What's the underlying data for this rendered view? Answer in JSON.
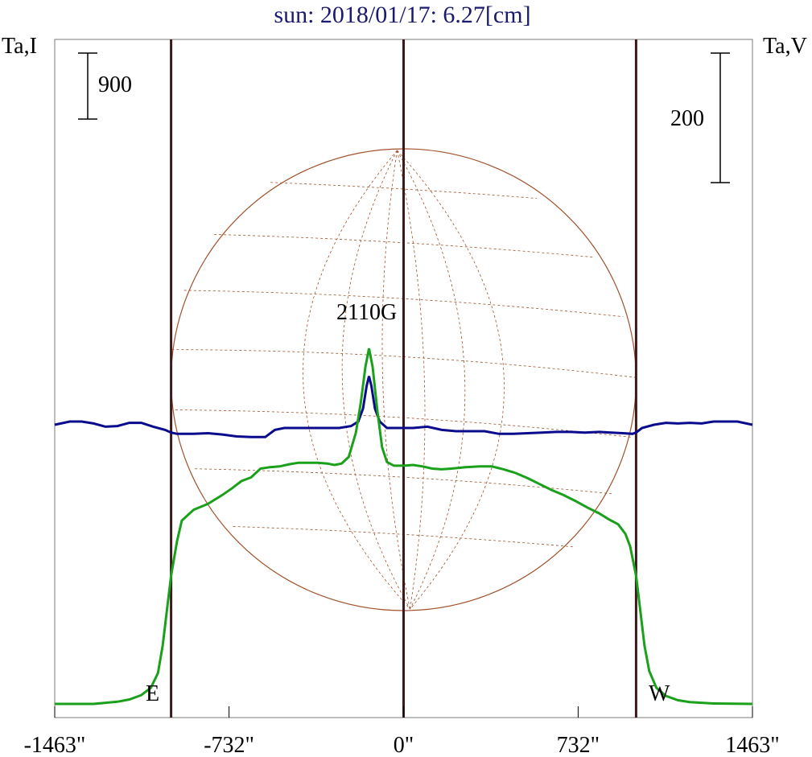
{
  "chart_data": {
    "type": "line",
    "title": "sun: 2018/01/17: 6.27[cm]",
    "left_axis_label": "Ta,I",
    "right_axis_label": "Ta,V",
    "x_unit": "arcsec",
    "xlim": [
      -1463,
      1463
    ],
    "x_tick_labels": [
      {
        "value": -1463,
        "label": "-1463\""
      },
      {
        "value": -732,
        "label": "-732\""
      },
      {
        "value": 0,
        "label": "0\""
      },
      {
        "value": 732,
        "label": "732\""
      },
      {
        "value": 1463,
        "label": "1463\""
      }
    ],
    "limb_markers": {
      "east": -975,
      "west": 975,
      "center": 0
    },
    "limb_labels": {
      "east": "E",
      "west": "W"
    },
    "scale_bars": {
      "intensity": {
        "label": "900",
        "value": 900
      },
      "polarization": {
        "label": "200",
        "value": 200
      }
    },
    "annotation": {
      "label": "2110G",
      "x": -12
    },
    "colors": {
      "intensity": "#1aa01a",
      "polarization": "#0a0a8c",
      "limb_lines": "#3a1a1a",
      "disk": "#a0522d",
      "title": "#1a1a6e"
    },
    "series": [
      {
        "key": "intensity",
        "points": [
          [
            -1463,
            0
          ],
          [
            -1300,
            0
          ],
          [
            -1200,
            30
          ],
          [
            -1150,
            60
          ],
          [
            -1100,
            120
          ],
          [
            -1060,
            220
          ],
          [
            -1030,
            420
          ],
          [
            -1010,
            800
          ],
          [
            -990,
            1350
          ],
          [
            -975,
            1750
          ],
          [
            -950,
            2220
          ],
          [
            -930,
            2500
          ],
          [
            -880,
            2650
          ],
          [
            -820,
            2730
          ],
          [
            -760,
            2850
          ],
          [
            -720,
            2940
          ],
          [
            -680,
            3040
          ],
          [
            -640,
            3090
          ],
          [
            -600,
            3210
          ],
          [
            -560,
            3230
          ],
          [
            -520,
            3240
          ],
          [
            -480,
            3270
          ],
          [
            -440,
            3290
          ],
          [
            -400,
            3290
          ],
          [
            -360,
            3290
          ],
          [
            -320,
            3280
          ],
          [
            -290,
            3260
          ],
          [
            -260,
            3280
          ],
          [
            -230,
            3370
          ],
          [
            -200,
            3700
          ],
          [
            -180,
            4100
          ],
          [
            -160,
            4600
          ],
          [
            -145,
            4850
          ],
          [
            -130,
            4600
          ],
          [
            -110,
            4000
          ],
          [
            -90,
            3500
          ],
          [
            -70,
            3300
          ],
          [
            -40,
            3250
          ],
          [
            0,
            3250
          ],
          [
            40,
            3260
          ],
          [
            80,
            3240
          ],
          [
            120,
            3210
          ],
          [
            160,
            3200
          ],
          [
            200,
            3210
          ],
          [
            260,
            3230
          ],
          [
            320,
            3240
          ],
          [
            370,
            3240
          ],
          [
            420,
            3200
          ],
          [
            470,
            3150
          ],
          [
            520,
            3080
          ],
          [
            570,
            3000
          ],
          [
            620,
            2920
          ],
          [
            670,
            2850
          ],
          [
            720,
            2770
          ],
          [
            770,
            2680
          ],
          [
            820,
            2600
          ],
          [
            860,
            2520
          ],
          [
            900,
            2450
          ],
          [
            930,
            2320
          ],
          [
            950,
            2150
          ],
          [
            975,
            1750
          ],
          [
            990,
            1350
          ],
          [
            1010,
            800
          ],
          [
            1030,
            450
          ],
          [
            1060,
            220
          ],
          [
            1100,
            110
          ],
          [
            1150,
            50
          ],
          [
            1200,
            25
          ],
          [
            1300,
            5
          ],
          [
            1463,
            0
          ]
        ]
      },
      {
        "key": "polarization",
        "points": [
          [
            -1463,
            0
          ],
          [
            -1400,
            5
          ],
          [
            -1350,
            5
          ],
          [
            -1300,
            2
          ],
          [
            -1250,
            -3
          ],
          [
            -1200,
            -2
          ],
          [
            -1150,
            3
          ],
          [
            -1100,
            3
          ],
          [
            -1050,
            -3
          ],
          [
            -1000,
            -8
          ],
          [
            -975,
            -12
          ],
          [
            -950,
            -14
          ],
          [
            -880,
            -14
          ],
          [
            -820,
            -13
          ],
          [
            -760,
            -15
          ],
          [
            -700,
            -18
          ],
          [
            -640,
            -19
          ],
          [
            -580,
            -19
          ],
          [
            -540,
            -8
          ],
          [
            -500,
            -5
          ],
          [
            -440,
            -5
          ],
          [
            -380,
            -5
          ],
          [
            -320,
            -5
          ],
          [
            -270,
            -5
          ],
          [
            -220,
            -2
          ],
          [
            -190,
            5
          ],
          [
            -170,
            25
          ],
          [
            -155,
            60
          ],
          [
            -145,
            75
          ],
          [
            -135,
            60
          ],
          [
            -120,
            25
          ],
          [
            -100,
            5
          ],
          [
            -70,
            -5
          ],
          [
            -40,
            -5
          ],
          [
            0,
            -5
          ],
          [
            40,
            -5
          ],
          [
            100,
            -3
          ],
          [
            160,
            -8
          ],
          [
            220,
            -10
          ],
          [
            280,
            -10
          ],
          [
            340,
            -10
          ],
          [
            400,
            -14
          ],
          [
            460,
            -14
          ],
          [
            520,
            -13
          ],
          [
            580,
            -12
          ],
          [
            640,
            -11
          ],
          [
            700,
            -11
          ],
          [
            760,
            -12
          ],
          [
            820,
            -11
          ],
          [
            870,
            -12
          ],
          [
            920,
            -13
          ],
          [
            960,
            -14
          ],
          [
            975,
            -12
          ],
          [
            1000,
            -5
          ],
          [
            1050,
            0
          ],
          [
            1100,
            3
          ],
          [
            1150,
            2
          ],
          [
            1200,
            3
          ],
          [
            1250,
            2
          ],
          [
            1300,
            5
          ],
          [
            1350,
            5
          ],
          [
            1400,
            5
          ],
          [
            1463,
            0
          ]
        ]
      }
    ]
  }
}
